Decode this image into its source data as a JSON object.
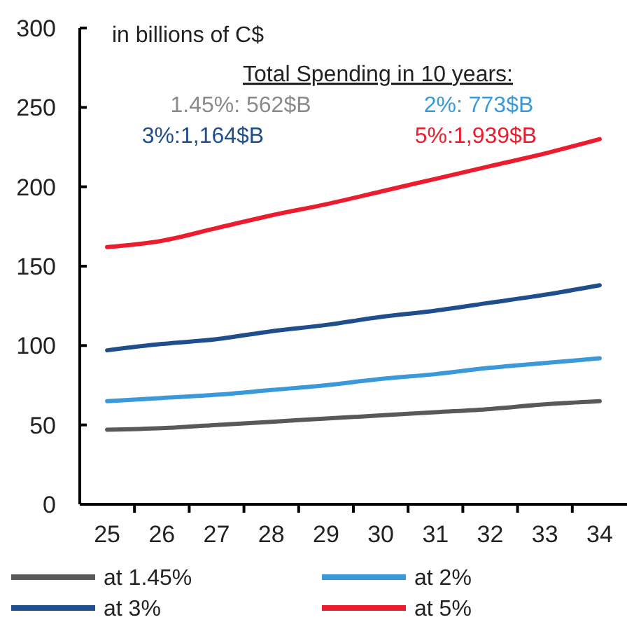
{
  "chart_data": {
    "type": "line",
    "ylabel": "in billions of C$",
    "categories": [
      "25",
      "26",
      "27",
      "28",
      "29",
      "30",
      "31",
      "32",
      "33",
      "34"
    ],
    "series": [
      {
        "name": "at 1.45%",
        "color": "#58595b",
        "values": [
          47,
          48,
          50,
          52,
          54,
          56,
          58,
          60,
          63,
          65
        ]
      },
      {
        "name": "at 2%",
        "color": "#3a9ad9",
        "values": [
          65,
          67,
          69,
          72,
          75,
          79,
          82,
          86,
          89,
          92
        ]
      },
      {
        "name": "at 3%",
        "color": "#1f4e8c",
        "values": [
          97,
          101,
          104,
          109,
          113,
          118,
          122,
          127,
          132,
          138
        ]
      },
      {
        "name": "at 5%",
        "color": "#ec1c2e",
        "values": [
          162,
          166,
          174,
          182,
          189,
          197,
          205,
          213,
          221,
          230
        ]
      }
    ],
    "annotations": [
      "Total Spending in 10 years:",
      "1.45%: 562$B",
      "2%: 773$B",
      "3%:1,164$B",
      "5%:1,939$B"
    ],
    "ylim": [
      0,
      300
    ],
    "yticks": [
      0,
      50,
      100,
      150,
      200,
      250,
      300
    ],
    "grid": false,
    "legend": "bottom",
    "marker": "none",
    "line_style": "solid"
  }
}
